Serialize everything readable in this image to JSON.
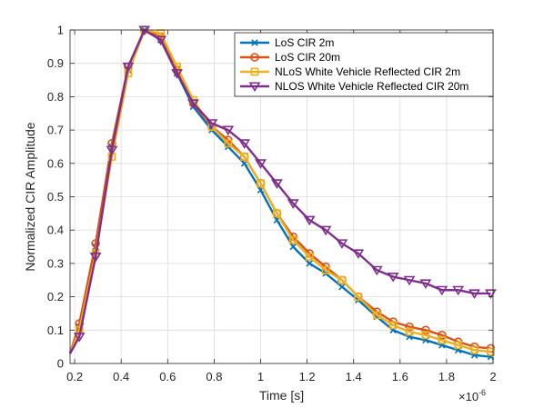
{
  "chart_data": {
    "type": "line",
    "xlabel": "Time [s]",
    "ylabel": "Normalized CIR Amplitude",
    "x_multiplier": "×10",
    "x_multiplier_exp": "-6",
    "xlim": [
      0.18,
      2.0
    ],
    "ylim": [
      0,
      1.0
    ],
    "grid": true,
    "legend_position": "top-right",
    "x_ticks": [
      0.2,
      0.4,
      0.6,
      0.8,
      1.0,
      1.2,
      1.4,
      1.6,
      1.8,
      2.0
    ],
    "x_tick_labels": [
      "0.2",
      "0.4",
      "0.6",
      "0.8",
      "1",
      "1.2",
      "1.4",
      "1.6",
      "1.8",
      "2"
    ],
    "y_ticks": [
      0,
      0.1,
      0.2,
      0.3,
      0.4,
      0.5,
      0.6,
      0.7,
      0.8,
      0.9,
      1.0
    ],
    "y_tick_labels": [
      "0",
      "0.1",
      "0.2",
      "0.3",
      "0.4",
      "0.5",
      "0.6",
      "0.7",
      "0.8",
      "0.9",
      "1"
    ],
    "x": [
      0.18,
      0.22,
      0.29,
      0.36,
      0.43,
      0.5,
      0.57,
      0.64,
      0.71,
      0.79,
      0.86,
      0.93,
      1.0,
      1.07,
      1.14,
      1.21,
      1.28,
      1.35,
      1.42,
      1.5,
      1.57,
      1.64,
      1.71,
      1.78,
      1.85,
      1.92,
      1.99
    ],
    "series": [
      {
        "name": "LoS CIR 2m",
        "color": "#0072BD",
        "marker": "x",
        "values": [
          0.03,
          0.11,
          0.35,
          0.65,
          0.88,
          1.0,
          0.97,
          0.87,
          0.77,
          0.7,
          0.65,
          0.6,
          0.52,
          0.43,
          0.35,
          0.3,
          0.27,
          0.23,
          0.19,
          0.14,
          0.1,
          0.08,
          0.07,
          0.055,
          0.04,
          0.025,
          0.02
        ]
      },
      {
        "name": "LoS CIR 20m",
        "color": "#D95319",
        "marker": "o",
        "values": [
          0.03,
          0.12,
          0.36,
          0.66,
          0.89,
          1.0,
          0.98,
          0.88,
          0.78,
          0.71,
          0.67,
          0.62,
          0.54,
          0.45,
          0.38,
          0.33,
          0.29,
          0.25,
          0.2,
          0.155,
          0.125,
          0.11,
          0.1,
          0.085,
          0.065,
          0.05,
          0.045
        ]
      },
      {
        "name": "NLoS White Vehicle Reflected CIR 2m",
        "color": "#EDB120",
        "marker": "s",
        "values": [
          0.03,
          0.1,
          0.33,
          0.62,
          0.87,
          1.0,
          0.99,
          0.89,
          0.79,
          0.71,
          0.66,
          0.62,
          0.54,
          0.45,
          0.37,
          0.32,
          0.28,
          0.25,
          0.2,
          0.145,
          0.115,
          0.095,
          0.085,
          0.07,
          0.055,
          0.04,
          0.035
        ]
      },
      {
        "name": "NLOS White Vehicle Reflected CIR 20m",
        "color": "#7E2F8E",
        "marker": "v",
        "values": [
          0.03,
          0.08,
          0.32,
          0.64,
          0.89,
          1.0,
          0.97,
          0.87,
          0.78,
          0.72,
          0.7,
          0.66,
          0.6,
          0.54,
          0.48,
          0.43,
          0.4,
          0.36,
          0.33,
          0.28,
          0.26,
          0.25,
          0.24,
          0.22,
          0.22,
          0.21,
          0.21
        ]
      }
    ]
  }
}
